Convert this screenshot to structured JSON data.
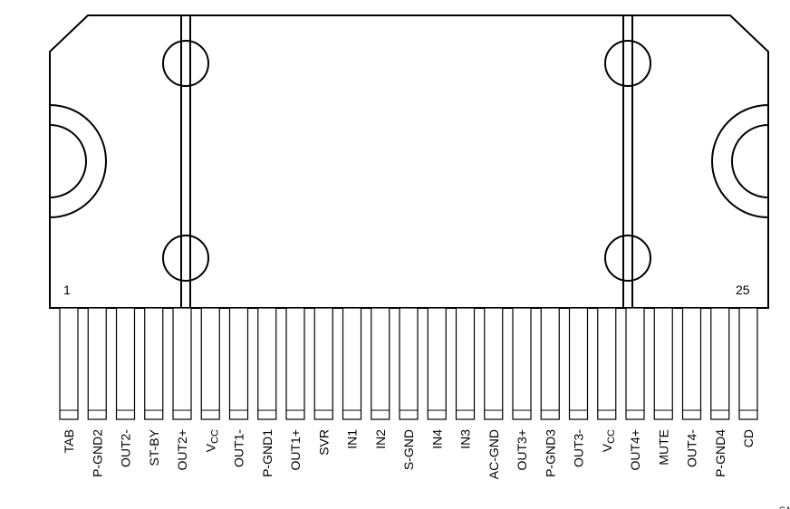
{
  "package": {
    "pin_first": "1",
    "pin_last": "25",
    "footnote": "GA"
  },
  "pins": [
    {
      "label": "TAB"
    },
    {
      "label": "P-GND2"
    },
    {
      "label": "OUT2-"
    },
    {
      "label": "ST-BY"
    },
    {
      "label": "OUT2+"
    },
    {
      "label": "V",
      "subscript": "CC"
    },
    {
      "label": "OUT1-"
    },
    {
      "label": "P-GND1"
    },
    {
      "label": "OUT1+"
    },
    {
      "label": "SVR"
    },
    {
      "label": "IN1"
    },
    {
      "label": "IN2"
    },
    {
      "label": "S-GND"
    },
    {
      "label": "IN4"
    },
    {
      "label": "IN3"
    },
    {
      "label": "AC-GND"
    },
    {
      "label": "OUT3+"
    },
    {
      "label": "P-GND3"
    },
    {
      "label": "OUT3-"
    },
    {
      "label": "V",
      "subscript": "CC"
    },
    {
      "label": "OUT4+"
    },
    {
      "label": "MUTE"
    },
    {
      "label": "OUT4-"
    },
    {
      "label": "P-GND4"
    },
    {
      "label": "CD"
    }
  ]
}
